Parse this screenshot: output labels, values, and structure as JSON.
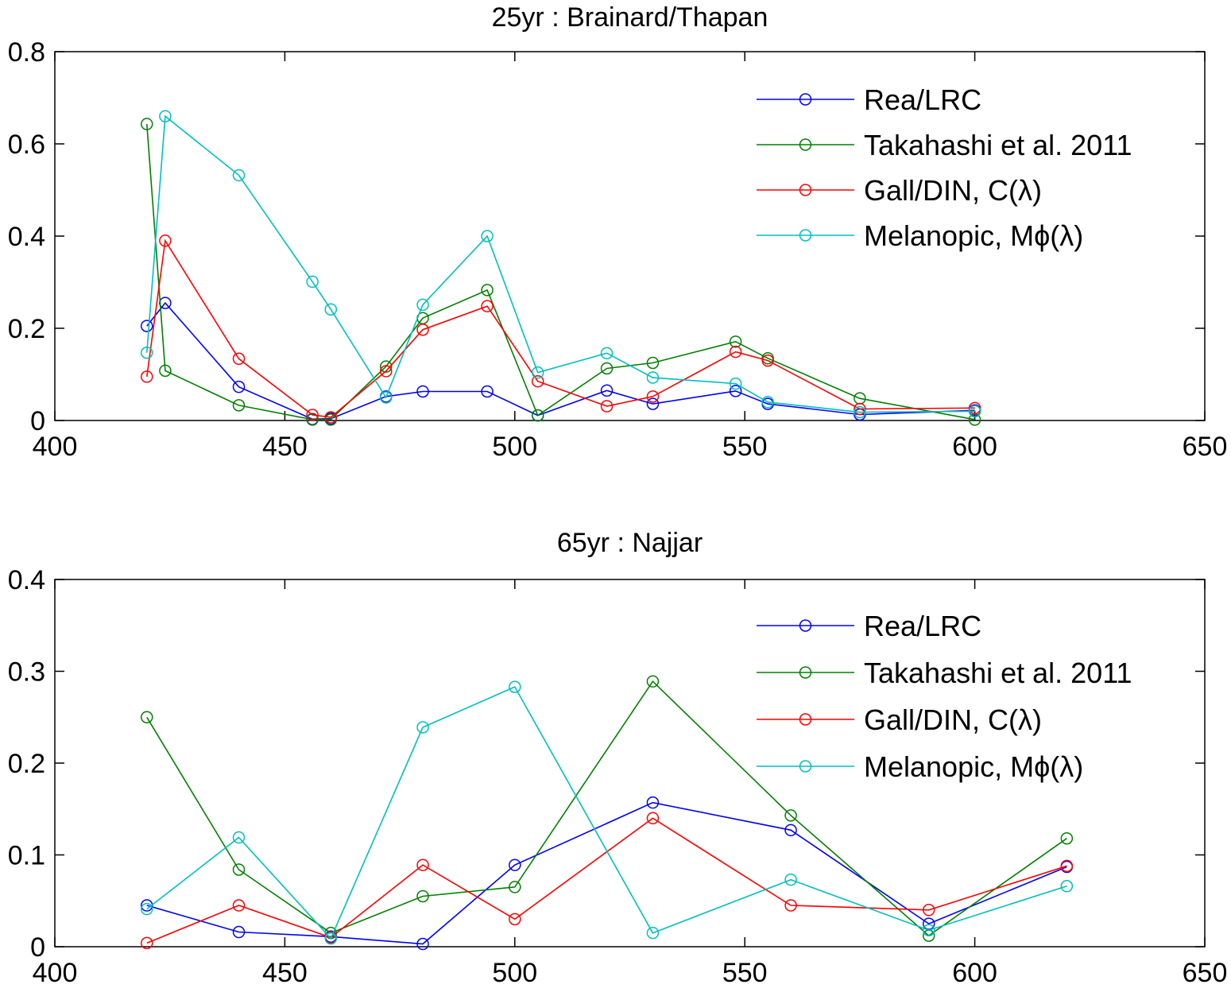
{
  "chart_data": [
    {
      "type": "line",
      "title": "25yr : Brainard/Thapan",
      "xlim": [
        400,
        650
      ],
      "ylim": [
        0,
        0.8
      ],
      "xticks": [
        "400",
        "450",
        "500",
        "550",
        "600",
        "650"
      ],
      "yticks": [
        "0",
        "0.2",
        "0.4",
        "0.6",
        "0.8"
      ],
      "legend_position": "top-right",
      "grid": false,
      "marker": "open-circle",
      "series": [
        {
          "name": "Rea/LRC",
          "color": "#0000ff",
          "x": [
            420,
            424,
            440,
            456,
            460,
            472,
            480,
            494,
            505,
            520,
            530,
            548,
            555,
            575,
            600
          ],
          "y": [
            0.205,
            0.255,
            0.073,
            0.003,
            0.004,
            0.052,
            0.063,
            0.063,
            0.011,
            0.065,
            0.036,
            0.064,
            0.036,
            0.013,
            0.022
          ]
        },
        {
          "name": "Takahashi et al. 2011",
          "color": "#008000",
          "x": [
            420,
            424,
            440,
            456,
            460,
            472,
            480,
            494,
            505,
            520,
            530,
            548,
            555,
            575,
            600
          ],
          "y": [
            0.643,
            0.108,
            0.033,
            0.002,
            0.002,
            0.117,
            0.222,
            0.283,
            0.011,
            0.113,
            0.125,
            0.171,
            0.135,
            0.048,
            0.002
          ]
        },
        {
          "name": "Gall/DIN, C(λ)",
          "color": "#ff0000",
          "x": [
            420,
            424,
            440,
            456,
            460,
            472,
            480,
            494,
            505,
            520,
            530,
            548,
            555,
            575,
            600
          ],
          "y": [
            0.095,
            0.39,
            0.134,
            0.012,
            0.007,
            0.107,
            0.197,
            0.248,
            0.085,
            0.031,
            0.052,
            0.149,
            0.13,
            0.025,
            0.027
          ]
        },
        {
          "name": "Melanopic, Mϕ(λ)",
          "color": "#00bfbf",
          "x": [
            420,
            424,
            440,
            456,
            460,
            472,
            480,
            494,
            505,
            520,
            530,
            548,
            555,
            575,
            600
          ],
          "y": [
            0.147,
            0.66,
            0.532,
            0.301,
            0.241,
            0.05,
            0.251,
            0.4,
            0.104,
            0.146,
            0.093,
            0.08,
            0.04,
            0.018,
            0.02
          ]
        }
      ]
    },
    {
      "type": "line",
      "title": "65yr : Najjar",
      "xlim": [
        400,
        650
      ],
      "ylim": [
        0,
        0.4
      ],
      "xticks": [
        "400",
        "450",
        "500",
        "550",
        "600",
        "650"
      ],
      "yticks": [
        "0",
        "0.1",
        "0.2",
        "0.3",
        "0.4"
      ],
      "legend_position": "top-right",
      "grid": false,
      "marker": "open-circle",
      "series": [
        {
          "name": "Rea/LRC",
          "color": "#0000ff",
          "x": [
            420,
            440,
            460,
            480,
            500,
            530,
            560,
            590,
            620
          ],
          "y": [
            0.045,
            0.016,
            0.011,
            0.003,
            0.089,
            0.157,
            0.127,
            0.025,
            0.087
          ]
        },
        {
          "name": "Takahashi et al. 2011",
          "color": "#008000",
          "x": [
            420,
            440,
            460,
            480,
            500,
            530,
            560,
            590,
            620
          ],
          "y": [
            0.25,
            0.084,
            0.015,
            0.055,
            0.065,
            0.289,
            0.143,
            0.012,
            0.118
          ]
        },
        {
          "name": "Gall/DIN, C(λ)",
          "color": "#ff0000",
          "x": [
            420,
            440,
            460,
            480,
            500,
            530,
            560,
            590,
            620
          ],
          "y": [
            0.004,
            0.045,
            0.01,
            0.089,
            0.03,
            0.14,
            0.045,
            0.04,
            0.088
          ]
        },
        {
          "name": "Melanopic, Mϕ(λ)",
          "color": "#00bfbf",
          "x": [
            420,
            440,
            460,
            480,
            500,
            530,
            560,
            590,
            620
          ],
          "y": [
            0.041,
            0.119,
            0.009,
            0.239,
            0.283,
            0.015,
            0.073,
            0.018,
            0.066
          ]
        }
      ]
    }
  ]
}
